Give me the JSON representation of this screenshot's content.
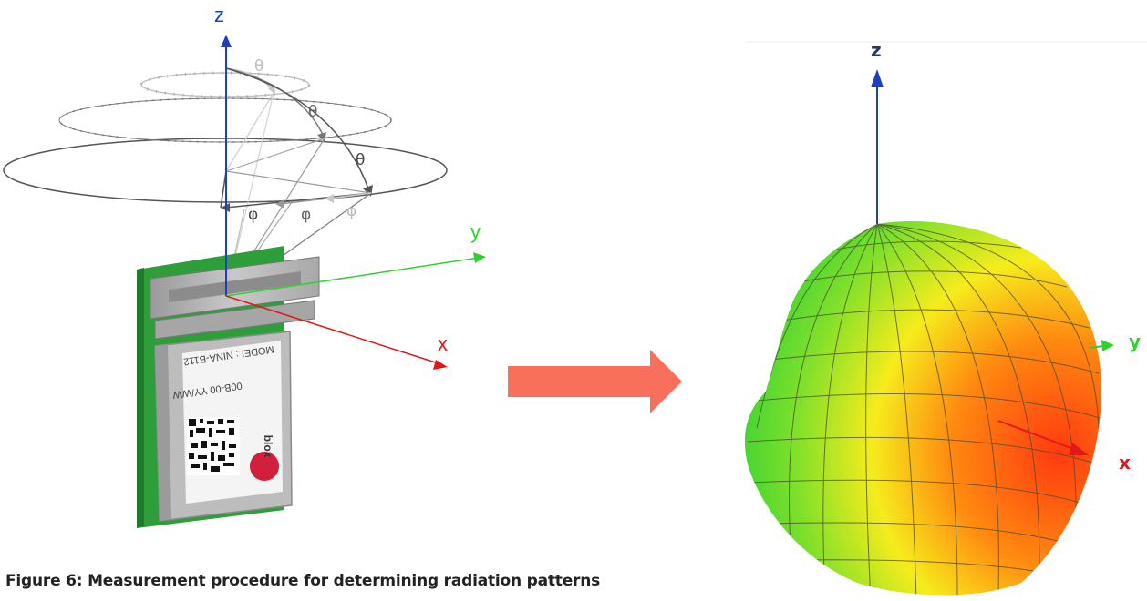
{
  "caption": "Figure 6: Measurement procedure for determining radiation patterns",
  "left_diagram": {
    "axis_z": "z",
    "axis_y": "y",
    "axis_x": "x",
    "theta": "θ",
    "phi": "φ",
    "module": {
      "model_text": "MODEL: NINA-B112",
      "code_text": "00B-00 YY/WW",
      "brand_text": "blox"
    }
  },
  "right_diagram": {
    "axis_z": "z",
    "axis_y": "y",
    "axis_x": "x"
  },
  "colors": {
    "z_axis": "#1f3fbf",
    "y_axis": "#2fd12f",
    "x_axis": "#e01818",
    "arrow": "#f8705c",
    "pcb": "#2e9e3a",
    "shield": "#b9b9b9"
  }
}
